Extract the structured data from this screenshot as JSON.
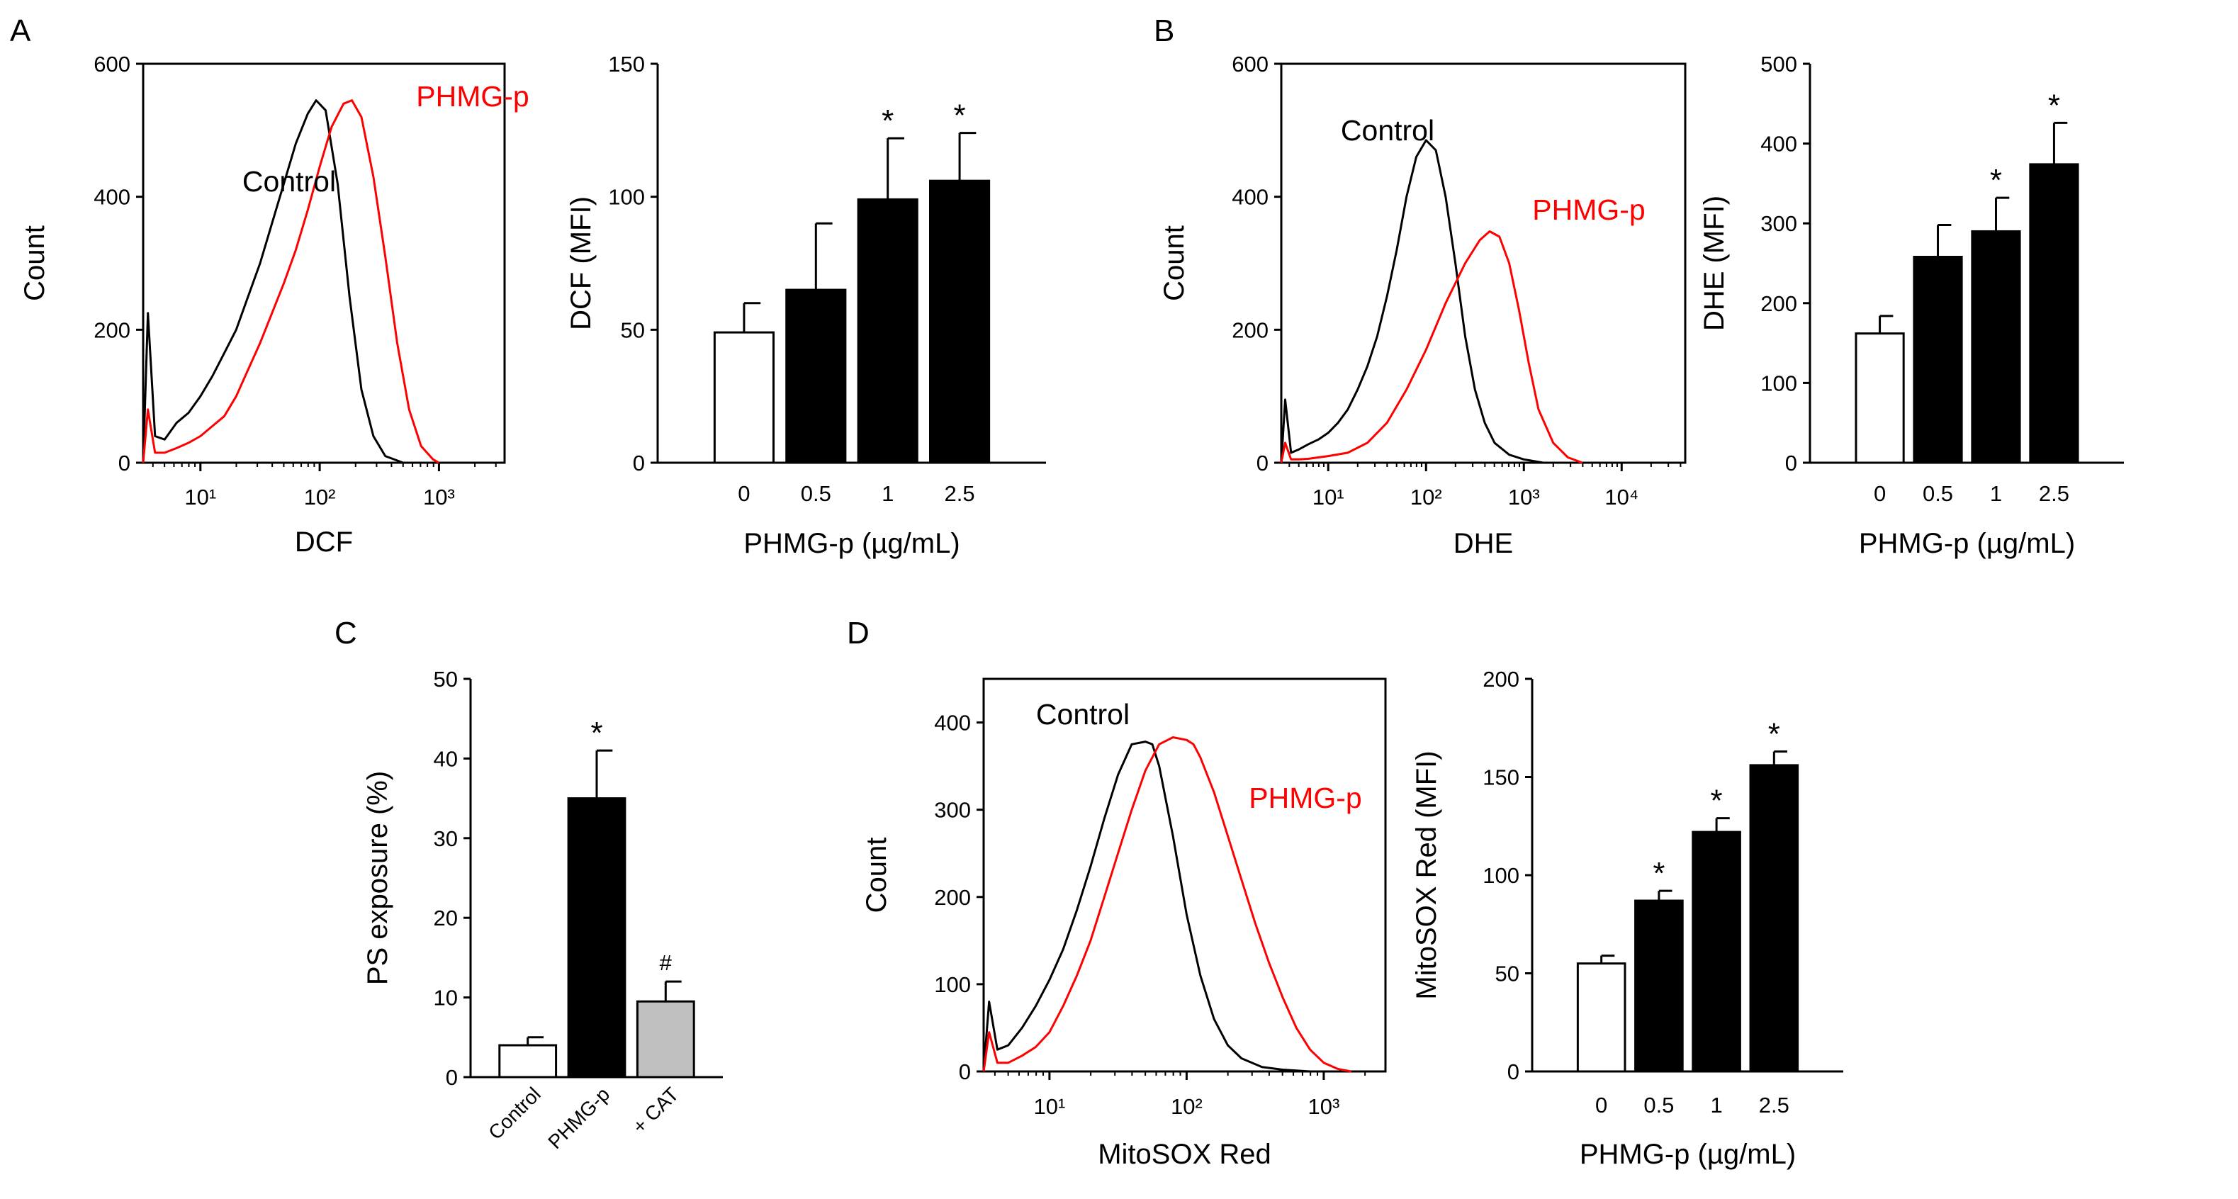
{
  "colors": {
    "control": "#000000",
    "treated": "#ff0000",
    "bar_white": "#ffffff",
    "bar_black": "#000000",
    "bar_gray": "#c0c0c0"
  },
  "panels": {
    "A": {
      "letter": "A"
    },
    "B": {
      "letter": "B"
    },
    "C": {
      "letter": "C"
    },
    "D": {
      "letter": "D"
    }
  },
  "chart_data": [
    {
      "id": "A-hist",
      "panel": "A",
      "type": "line",
      "xlabel": "DCF",
      "ylabel": "Count",
      "ylim": [
        0,
        600
      ],
      "yticks": [
        0,
        200,
        400,
        600
      ],
      "xticks": [
        "10¹",
        "10²",
        "10³"
      ],
      "log_x_range": [
        0.52,
        3.55
      ],
      "series": [
        {
          "name": "Control",
          "color": "#000000",
          "x": [
            0.52,
            0.56,
            0.62,
            0.7,
            0.8,
            0.9,
            1.0,
            1.1,
            1.2,
            1.3,
            1.4,
            1.5,
            1.6,
            1.7,
            1.8,
            1.9,
            1.97,
            2.05,
            2.15,
            2.25,
            2.35,
            2.45,
            2.55,
            2.7
          ],
          "y": [
            0,
            225,
            40,
            35,
            60,
            75,
            100,
            130,
            165,
            200,
            250,
            300,
            360,
            420,
            480,
            525,
            545,
            530,
            420,
            250,
            110,
            40,
            10,
            0
          ]
        },
        {
          "name": "PHMG-p",
          "color": "#ff0000",
          "x": [
            0.52,
            0.56,
            0.62,
            0.7,
            0.8,
            0.9,
            1.0,
            1.1,
            1.2,
            1.3,
            1.4,
            1.5,
            1.6,
            1.7,
            1.8,
            1.9,
            2.0,
            2.1,
            2.2,
            2.27,
            2.35,
            2.45,
            2.55,
            2.65,
            2.75,
            2.85,
            2.95,
            3.0
          ],
          "y": [
            0,
            80,
            15,
            15,
            22,
            30,
            40,
            55,
            70,
            100,
            140,
            180,
            225,
            270,
            320,
            380,
            445,
            505,
            540,
            545,
            520,
            430,
            310,
            180,
            80,
            25,
            5,
            0
          ]
        }
      ],
      "annotations": [
        "Control",
        "PHMG-p"
      ]
    },
    {
      "id": "A-bar",
      "panel": "A",
      "type": "bar",
      "title": "",
      "xlabel": "PHMG-p (µg/mL)",
      "ylabel": "DCF (MFI)",
      "ylim": [
        0,
        150
      ],
      "yticks": [
        0,
        50,
        100,
        150
      ],
      "categories": [
        "0",
        "0.5",
        "1",
        "2.5"
      ],
      "values": [
        49,
        65,
        99,
        106
      ],
      "errors": [
        11,
        25,
        23,
        18
      ],
      "fills": [
        "white",
        "black",
        "black",
        "black"
      ],
      "marks": [
        "",
        "",
        "*",
        "*"
      ]
    },
    {
      "id": "B-hist",
      "panel": "B",
      "type": "line",
      "xlabel": "DHE",
      "ylabel": "Count",
      "ylim": [
        0,
        600
      ],
      "yticks": [
        0,
        200,
        400,
        600
      ],
      "xticks": [
        "10¹",
        "10²",
        "10³",
        "10⁴"
      ],
      "log_x_range": [
        0.52,
        4.65
      ],
      "series": [
        {
          "name": "Control",
          "color": "#000000",
          "x": [
            0.52,
            0.56,
            0.62,
            0.7,
            0.8,
            0.9,
            1.0,
            1.1,
            1.2,
            1.3,
            1.4,
            1.5,
            1.6,
            1.7,
            1.8,
            1.9,
            2.0,
            2.1,
            2.2,
            2.3,
            2.4,
            2.5,
            2.6,
            2.7,
            2.85,
            3.0,
            3.2
          ],
          "y": [
            0,
            95,
            15,
            20,
            28,
            35,
            45,
            60,
            80,
            110,
            145,
            190,
            250,
            320,
            400,
            460,
            485,
            470,
            400,
            300,
            190,
            110,
            60,
            30,
            12,
            5,
            0
          ]
        },
        {
          "name": "PHMG-p",
          "color": "#ff0000",
          "x": [
            0.52,
            0.56,
            0.62,
            0.7,
            0.8,
            0.9,
            1.0,
            1.2,
            1.4,
            1.6,
            1.8,
            2.0,
            2.2,
            2.4,
            2.55,
            2.65,
            2.75,
            2.85,
            2.95,
            3.05,
            3.15,
            3.3,
            3.45,
            3.6
          ],
          "y": [
            0,
            30,
            5,
            5,
            6,
            8,
            10,
            15,
            30,
            60,
            110,
            170,
            240,
            300,
            335,
            348,
            340,
            300,
            230,
            150,
            80,
            30,
            8,
            0
          ]
        }
      ],
      "annotations": [
        "Control",
        "PHMG-p"
      ]
    },
    {
      "id": "B-bar",
      "panel": "B",
      "type": "bar",
      "xlabel": "PHMG-p (µg/mL)",
      "ylabel": "DHE (MFI)",
      "ylim": [
        0,
        500
      ],
      "yticks": [
        0,
        100,
        200,
        300,
        400,
        500
      ],
      "categories": [
        "0",
        "0.5",
        "1",
        "2.5"
      ],
      "values": [
        162,
        258,
        290,
        374
      ],
      "errors": [
        22,
        40,
        42,
        52
      ],
      "fills": [
        "white",
        "black",
        "black",
        "black"
      ],
      "marks": [
        "",
        "",
        "*",
        "*"
      ]
    },
    {
      "id": "C-bar",
      "panel": "C",
      "type": "bar",
      "xlabel": "",
      "ylabel": "PS exposure (%)",
      "ylim": [
        0,
        50
      ],
      "yticks": [
        0,
        10,
        20,
        30,
        40,
        50
      ],
      "categories": [
        "Control",
        "PHMG-p",
        "+ CAT"
      ],
      "values": [
        4,
        35,
        9.5
      ],
      "errors": [
        1,
        6,
        2.5
      ],
      "fills": [
        "white",
        "black",
        "gray"
      ],
      "marks": [
        "",
        "*",
        "#"
      ]
    },
    {
      "id": "D-hist",
      "panel": "D",
      "type": "line",
      "xlabel": "MitoSOX Red",
      "ylabel": "Count",
      "ylim": [
        0,
        450
      ],
      "yticks": [
        0,
        100,
        200,
        300,
        400
      ],
      "xticks": [
        "10¹",
        "10²",
        "10³"
      ],
      "log_x_range": [
        0.52,
        3.45
      ],
      "series": [
        {
          "name": "Control",
          "color": "#000000",
          "x": [
            0.52,
            0.56,
            0.62,
            0.7,
            0.8,
            0.9,
            1.0,
            1.1,
            1.2,
            1.3,
            1.4,
            1.5,
            1.6,
            1.7,
            1.75,
            1.8,
            1.9,
            2.0,
            2.1,
            2.2,
            2.3,
            2.4,
            2.55,
            2.7,
            2.9
          ],
          "y": [
            0,
            80,
            25,
            30,
            50,
            75,
            105,
            140,
            185,
            235,
            290,
            340,
            375,
            378,
            375,
            350,
            270,
            180,
            110,
            60,
            30,
            15,
            5,
            2,
            0
          ]
        },
        {
          "name": "PHMG-p",
          "color": "#ff0000",
          "x": [
            0.52,
            0.56,
            0.62,
            0.7,
            0.8,
            0.9,
            1.0,
            1.1,
            1.2,
            1.3,
            1.4,
            1.5,
            1.6,
            1.7,
            1.8,
            1.9,
            2.0,
            2.05,
            2.1,
            2.2,
            2.3,
            2.4,
            2.5,
            2.6,
            2.7,
            2.8,
            2.9,
            3.0,
            3.1,
            3.2
          ],
          "y": [
            0,
            45,
            10,
            10,
            18,
            28,
            45,
            75,
            110,
            150,
            200,
            250,
            300,
            345,
            375,
            383,
            380,
            375,
            360,
            320,
            270,
            220,
            170,
            125,
            85,
            50,
            25,
            10,
            3,
            0
          ]
        }
      ],
      "annotations": [
        "Control",
        "PHMG-p"
      ]
    },
    {
      "id": "D-bar",
      "panel": "D",
      "type": "bar",
      "xlabel": "PHMG-p (µg/mL)",
      "ylabel": "MitoSOX Red (MFI)",
      "ylim": [
        0,
        200
      ],
      "yticks": [
        0,
        50,
        100,
        150,
        200
      ],
      "categories": [
        "0",
        "0.5",
        "1",
        "2.5"
      ],
      "values": [
        55,
        87,
        122,
        156
      ],
      "errors": [
        4,
        5,
        7,
        7
      ],
      "fills": [
        "white",
        "black",
        "black",
        "black"
      ],
      "marks": [
        "",
        "*",
        "*",
        "*"
      ]
    }
  ]
}
